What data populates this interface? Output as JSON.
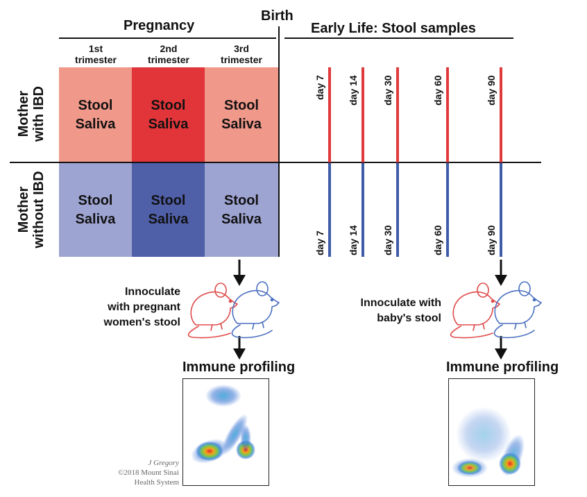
{
  "headers": {
    "pregnancy": "Pregnancy",
    "birth": "Birth",
    "early_life": "Early Life: Stool samples"
  },
  "trimesters": [
    {
      "line1": "1st",
      "line2": "trimester"
    },
    {
      "line1": "2nd",
      "line2": "trimester"
    },
    {
      "line1": "3rd",
      "line2": "trimester"
    }
  ],
  "rows": [
    {
      "line1": "Mother",
      "line2": "with IBD"
    },
    {
      "line1": "Mother",
      "line2": "without IBD"
    }
  ],
  "cell_text": {
    "stool": "Stool",
    "saliva": "Saliva"
  },
  "days": [
    "day 7",
    "day 14",
    "day 30",
    "day 60",
    "day 90"
  ],
  "colors": {
    "ibd_light": "#F0988A",
    "ibd_dark": "#E2353A",
    "nonibd_light": "#9EA4D2",
    "nonibd_dark": "#4F5FA8",
    "ibd_line": "#E0393B",
    "nonibd_line": "#3F5CA9",
    "mouse_red": "#E04A4A",
    "mouse_blue": "#4A6FC0"
  },
  "left_panel": {
    "caption_lines": [
      "Innoculate",
      "with pregnant",
      "women's stool"
    ],
    "profiling": "Immune profiling"
  },
  "right_panel": {
    "caption_lines": [
      "Innoculate with",
      "baby's stool"
    ],
    "profiling": "Immune profiling"
  },
  "credit": {
    "author": "J Gregory",
    "line2": "©2018 Mount Sinai",
    "line3": "Health System"
  }
}
